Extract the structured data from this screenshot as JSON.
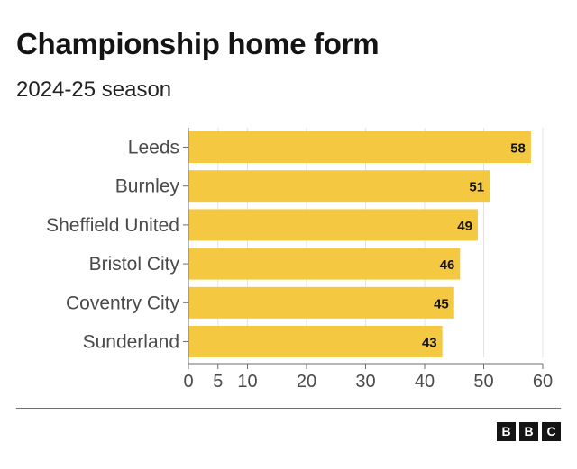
{
  "header": {
    "title": "Championship home form",
    "subtitle": "2024-25 season"
  },
  "chart_data": {
    "type": "bar",
    "orientation": "horizontal",
    "categories": [
      "Leeds",
      "Burnley",
      "Sheffield United",
      "Bristol City",
      "Coventry City",
      "Sunderland"
    ],
    "values": [
      58,
      51,
      49,
      46,
      45,
      43
    ],
    "xlim": [
      0,
      60
    ],
    "xticks": [
      0,
      5,
      10,
      20,
      30,
      40,
      50,
      60
    ],
    "data_labels": true,
    "grid": true,
    "bar_color": "#f5c842"
  },
  "footer": {
    "logo_letters": [
      "B",
      "B",
      "C"
    ]
  }
}
